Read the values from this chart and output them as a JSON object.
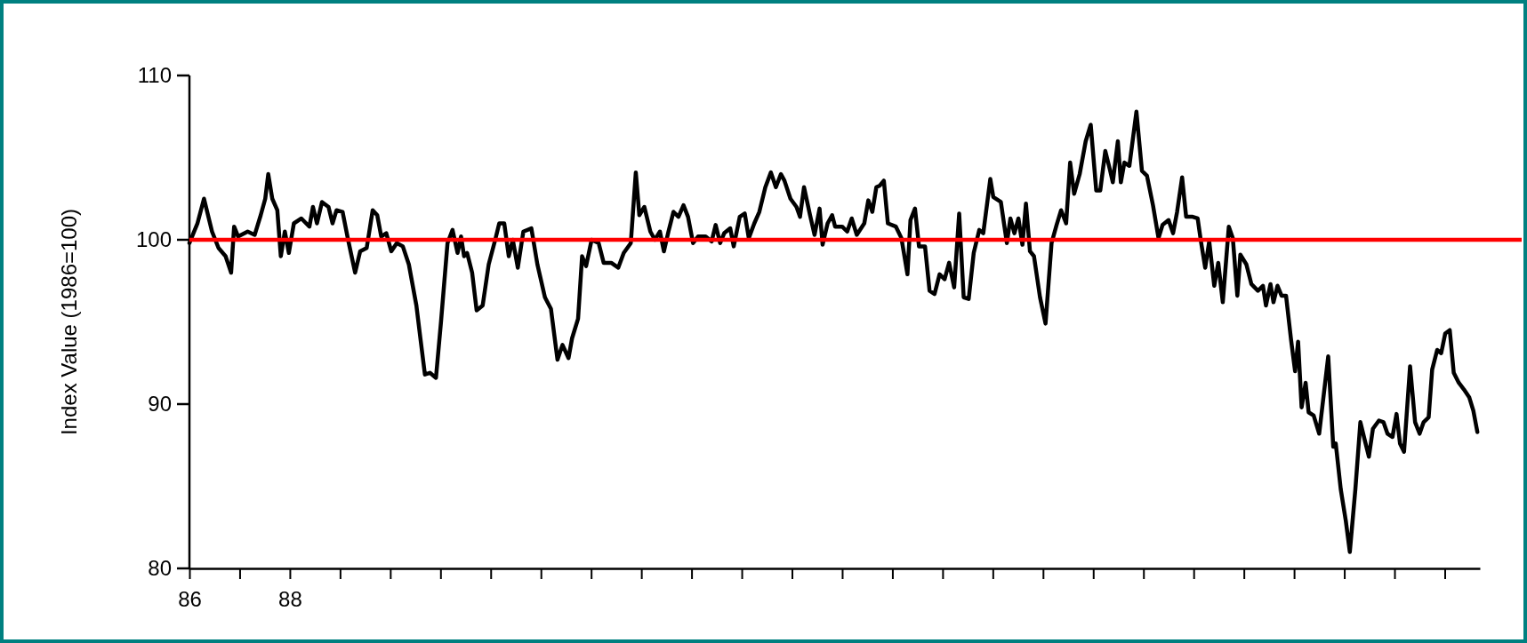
{
  "chart_data": {
    "type": "line",
    "ylabel": "Index Value (1986=100)",
    "xlim": [
      1986,
      2011.7
    ],
    "ylim": [
      80,
      110
    ],
    "yticks": [
      80,
      90,
      100,
      110
    ],
    "xticks": [
      {
        "value": 1986,
        "label": "86"
      },
      {
        "value": 1987,
        "label": null
      },
      {
        "value": 1988,
        "label": "88"
      },
      {
        "value": 1989,
        "label": null
      },
      {
        "value": 1990,
        "label": null
      },
      {
        "value": 1991,
        "label": null
      },
      {
        "value": 1992,
        "label": null
      },
      {
        "value": 1993,
        "label": null
      },
      {
        "value": 1994,
        "label": null
      },
      {
        "value": 1995,
        "label": null
      },
      {
        "value": 1996,
        "label": null
      },
      {
        "value": 1997,
        "label": null
      },
      {
        "value": 1998,
        "label": null
      },
      {
        "value": 1999,
        "label": null
      },
      {
        "value": 2000,
        "label": null
      },
      {
        "value": 2001,
        "label": null
      },
      {
        "value": 2002,
        "label": null
      },
      {
        "value": 2003,
        "label": null
      },
      {
        "value": 2004,
        "label": null
      },
      {
        "value": 2005,
        "label": null
      },
      {
        "value": 2006,
        "label": null
      },
      {
        "value": 2007,
        "label": null
      },
      {
        "value": 2008,
        "label": null
      },
      {
        "value": 2009,
        "label": null
      },
      {
        "value": 2010,
        "label": null
      },
      {
        "value": 2011,
        "label": null
      }
    ],
    "grid": false,
    "marker": "none",
    "line_style": "solid",
    "ref_lines": [
      {
        "axis": "y",
        "value": 100,
        "color": "#ff0000"
      }
    ],
    "series": [
      {
        "color": "#000000",
        "x": [
          1986.0,
          1986.16,
          1986.29,
          1986.45,
          1986.58,
          1986.72,
          1986.83,
          1986.89,
          1986.97,
          1987.16,
          1987.3,
          1987.42,
          1987.51,
          1987.57,
          1987.65,
          1987.75,
          1987.82,
          1987.9,
          1987.98,
          1988.08,
          1988.23,
          1988.39,
          1988.46,
          1988.54,
          1988.64,
          1988.77,
          1988.85,
          1988.93,
          1989.05,
          1989.16,
          1989.3,
          1989.4,
          1989.53,
          1989.65,
          1989.74,
          1989.82,
          1989.92,
          1990.02,
          1990.13,
          1990.25,
          1990.37,
          1990.52,
          1990.6,
          1990.69,
          1990.79,
          1990.91,
          1991.01,
          1991.14,
          1991.24,
          1991.34,
          1991.41,
          1991.47,
          1991.53,
          1991.63,
          1991.72,
          1991.84,
          1991.96,
          1992.09,
          1992.17,
          1992.27,
          1992.36,
          1992.44,
          1992.54,
          1992.65,
          1992.81,
          1992.93,
          1993.08,
          1993.2,
          1993.33,
          1993.43,
          1993.55,
          1993.62,
          1993.74,
          1993.82,
          1993.9,
          1994.01,
          1994.15,
          1994.25,
          1994.4,
          1994.54,
          1994.65,
          1994.79,
          1994.89,
          1994.96,
          1995.06,
          1995.18,
          1995.27,
          1995.37,
          1995.45,
          1995.54,
          1995.64,
          1995.74,
          1995.84,
          1995.93,
          1996.03,
          1996.13,
          1996.28,
          1996.4,
          1996.48,
          1996.57,
          1996.65,
          1996.77,
          1996.84,
          1996.96,
          1997.06,
          1997.14,
          1997.25,
          1997.35,
          1997.47,
          1997.58,
          1997.68,
          1997.78,
          1997.85,
          1997.97,
          1998.09,
          1998.16,
          1998.24,
          1998.36,
          1998.45,
          1998.55,
          1998.61,
          1998.71,
          1998.8,
          1998.86,
          1999.0,
          1999.1,
          1999.19,
          1999.29,
          1999.44,
          1999.52,
          1999.6,
          1999.68,
          1999.75,
          1999.83,
          1999.91,
          2000.07,
          2000.18,
          2000.3,
          2000.36,
          2000.45,
          2000.53,
          2000.65,
          2000.74,
          2000.84,
          2000.94,
          2001.04,
          2001.13,
          2001.23,
          2001.33,
          2001.42,
          2001.52,
          2001.62,
          2001.73,
          2001.81,
          2001.95,
          2002.01,
          2002.16,
          2002.28,
          2002.35,
          2002.43,
          2002.51,
          2002.59,
          2002.66,
          2002.74,
          2002.82,
          2002.94,
          2003.05,
          2003.17,
          2003.27,
          2003.36,
          2003.46,
          2003.54,
          2003.62,
          2003.73,
          2003.85,
          2003.95,
          2004.06,
          2004.14,
          2004.24,
          2004.33,
          2004.39,
          2004.49,
          2004.55,
          2004.62,
          2004.72,
          2004.86,
          2004.97,
          2005.07,
          2005.19,
          2005.3,
          2005.38,
          2005.5,
          2005.59,
          2005.67,
          2005.77,
          2005.85,
          2005.98,
          2006.08,
          2006.14,
          2006.23,
          2006.31,
          2006.41,
          2006.49,
          2006.58,
          2006.7,
          2006.78,
          2006.87,
          2006.93,
          2007.05,
          2007.15,
          2007.28,
          2007.38,
          2007.44,
          2007.53,
          2007.59,
          2007.67,
          2007.75,
          2007.84,
          2007.94,
          2008.02,
          2008.08,
          2008.15,
          2008.23,
          2008.29,
          2008.39,
          2008.5,
          2008.68,
          2008.78,
          2008.83,
          2008.93,
          2009.03,
          2009.11,
          2009.22,
          2009.32,
          2009.4,
          2009.49,
          2009.57,
          2009.69,
          2009.78,
          2009.86,
          2009.96,
          2010.04,
          2010.11,
          2010.19,
          2010.31,
          2010.41,
          2010.5,
          2010.58,
          2010.68,
          2010.75,
          2010.85,
          2010.93,
          2011.01,
          2011.1,
          2011.18,
          2011.28,
          2011.38,
          2011.49,
          2011.57,
          2011.65
        ],
        "values": [
          99.8,
          101,
          102.5,
          100.5,
          99.5,
          99,
          98,
          100.8,
          100.2,
          100.5,
          100.3,
          101.5,
          102.5,
          104,
          102.5,
          101.8,
          99,
          100.5,
          99.2,
          101,
          101.3,
          100.8,
          102,
          101,
          102.3,
          102,
          101,
          101.8,
          101.7,
          100,
          98,
          99.3,
          99.5,
          101.8,
          101.5,
          100.2,
          100.4,
          99.3,
          99.8,
          99.6,
          98.5,
          96,
          94,
          91.8,
          91.9,
          91.6,
          95,
          99.8,
          100.6,
          99.2,
          100.2,
          99,
          99.2,
          98,
          95.7,
          96,
          98.5,
          100,
          101,
          101,
          99,
          100,
          98.3,
          100.5,
          100.7,
          98.5,
          96.5,
          95.8,
          92.7,
          93.6,
          92.8,
          94,
          95.2,
          99,
          98.4,
          100,
          99.8,
          98.6,
          98.6,
          98.3,
          99.2,
          99.8,
          104.1,
          101.5,
          102,
          100.5,
          100,
          100.5,
          99.3,
          100.5,
          101.7,
          101.4,
          102.1,
          101.4,
          99.8,
          100.2,
          100.2,
          99.9,
          100.9,
          99.8,
          100.4,
          100.7,
          99.6,
          101.4,
          101.6,
          100.1,
          101,
          101.7,
          103.2,
          104.1,
          103.2,
          104,
          103.6,
          102.5,
          102,
          101.4,
          103.2,
          101.5,
          100.3,
          101.9,
          99.7,
          101,
          101.5,
          100.8,
          100.8,
          100.5,
          101.3,
          100.3,
          101,
          102.4,
          101.7,
          103.2,
          103.3,
          103.6,
          101,
          100.8,
          100.1,
          97.9,
          101.2,
          101.9,
          99.6,
          99.6,
          96.9,
          96.7,
          97.9,
          97.6,
          98.6,
          97.1,
          101.6,
          96.5,
          96.4,
          99.2,
          100.6,
          100.4,
          103.7,
          102.6,
          102.3,
          99.8,
          101.3,
          100.4,
          101.3,
          99.7,
          102.2,
          99.3,
          99,
          96.5,
          94.9,
          99.8,
          100.9,
          101.8,
          101,
          104.7,
          102.8,
          104,
          106,
          107,
          103,
          103,
          105.4,
          104.3,
          103.5,
          106,
          103.5,
          104.7,
          104.5,
          107.8,
          104.2,
          103.9,
          102.1,
          100.1,
          100.9,
          101.2,
          100.4,
          101.7,
          103.8,
          101.4,
          101.4,
          101.3,
          100,
          98.3,
          99.9,
          97.2,
          98.6,
          96.2,
          100.8,
          100.1,
          96.6,
          99.1,
          98.5,
          97.3,
          96.9,
          97.2,
          96,
          97.3,
          96.2,
          97.2,
          96.6,
          96.6,
          93.9,
          92,
          93.8,
          89.8,
          91.3,
          89.5,
          89.3,
          88.2,
          92.9,
          87.4,
          87.6,
          84.8,
          82.9,
          81,
          84.8,
          88.9,
          87.9,
          86.8,
          88.5,
          89,
          88.9,
          88.2,
          88,
          89.4,
          87.6,
          87.1,
          92.3,
          88.9,
          88.2,
          88.9,
          89.2,
          92.1,
          93.3,
          93.1,
          94.3,
          94.5,
          91.9,
          91.3,
          90.9,
          90.4,
          89.6,
          88.3
        ]
      }
    ]
  }
}
